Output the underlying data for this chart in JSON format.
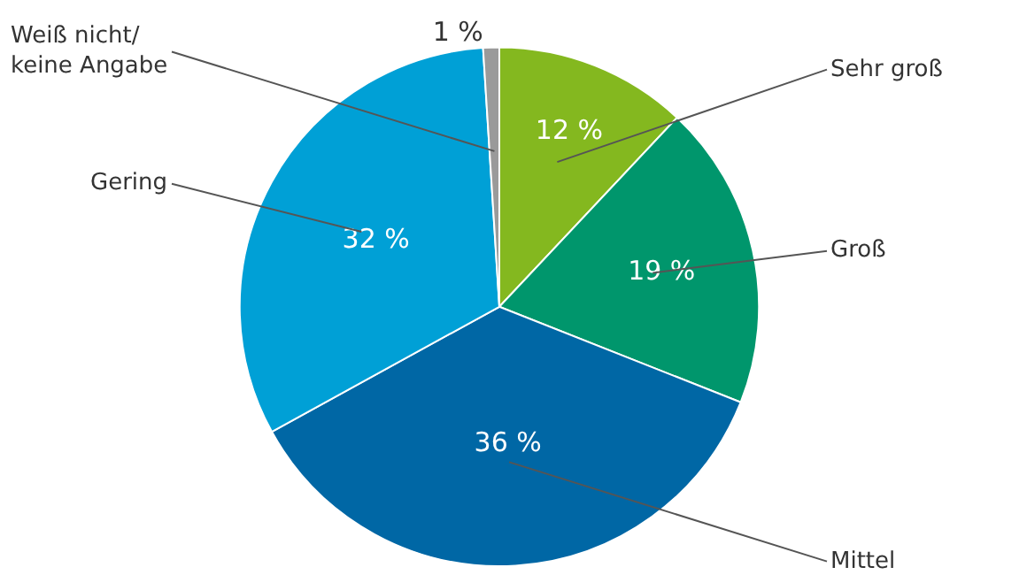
{
  "chart_data": {
    "type": "pie",
    "categories": [
      "Sehr groß",
      "Groß",
      "Mittel",
      "Gering",
      "Weiß nicht/\nkeine Angabe"
    ],
    "values": [
      12,
      19,
      36,
      32,
      1
    ],
    "colors": [
      "#84b81f",
      "#00966c",
      "#0067a5",
      "#00a0d6",
      "#9a9a9a"
    ],
    "value_labels": [
      "12 %",
      "19 %",
      "36 %",
      "32 %",
      "1 %"
    ]
  }
}
